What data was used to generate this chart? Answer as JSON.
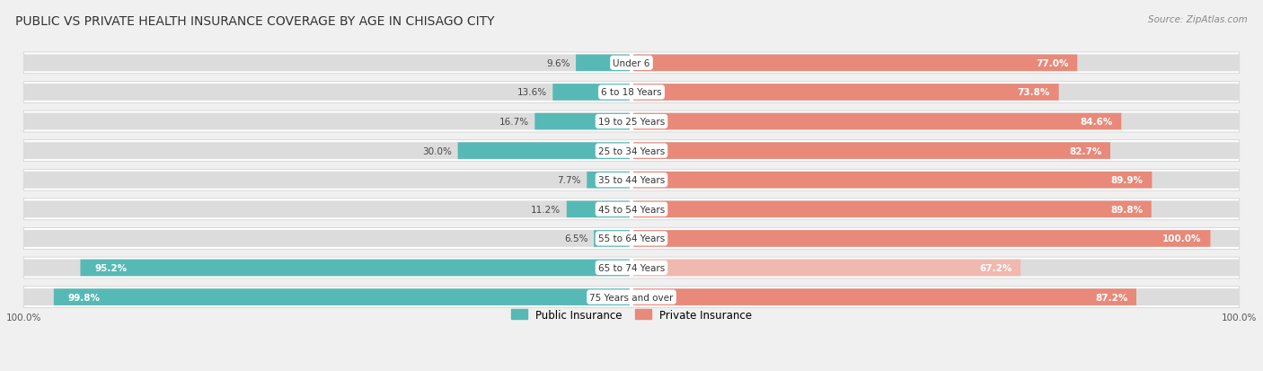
{
  "title": "PUBLIC VS PRIVATE HEALTH INSURANCE COVERAGE BY AGE IN CHISAGO CITY",
  "source": "Source: ZipAtlas.com",
  "categories": [
    "Under 6",
    "6 to 18 Years",
    "19 to 25 Years",
    "25 to 34 Years",
    "35 to 44 Years",
    "45 to 54 Years",
    "55 to 64 Years",
    "65 to 74 Years",
    "75 Years and over"
  ],
  "public_values": [
    9.6,
    13.6,
    16.7,
    30.0,
    7.7,
    11.2,
    6.5,
    95.2,
    99.8
  ],
  "private_values": [
    77.0,
    73.8,
    84.6,
    82.7,
    89.9,
    89.8,
    100.0,
    67.2,
    87.2
  ],
  "public_color": "#57b9b5",
  "private_color": "#e8897a",
  "private_color_light": "#f0b8ae",
  "background_color": "#f0f0f0",
  "row_bg_color": "#ffffff",
  "bar_bg_color": "#dcdcdc",
  "axis_label_left": "100.0%",
  "axis_label_right": "100.0%",
  "legend_public": "Public Insurance",
  "legend_private": "Private Insurance",
  "title_fontsize": 10,
  "source_fontsize": 7.5,
  "label_fontsize": 7.5,
  "bar_height": 0.58,
  "total_width": 100.0,
  "light_private_indices": [
    7
  ]
}
